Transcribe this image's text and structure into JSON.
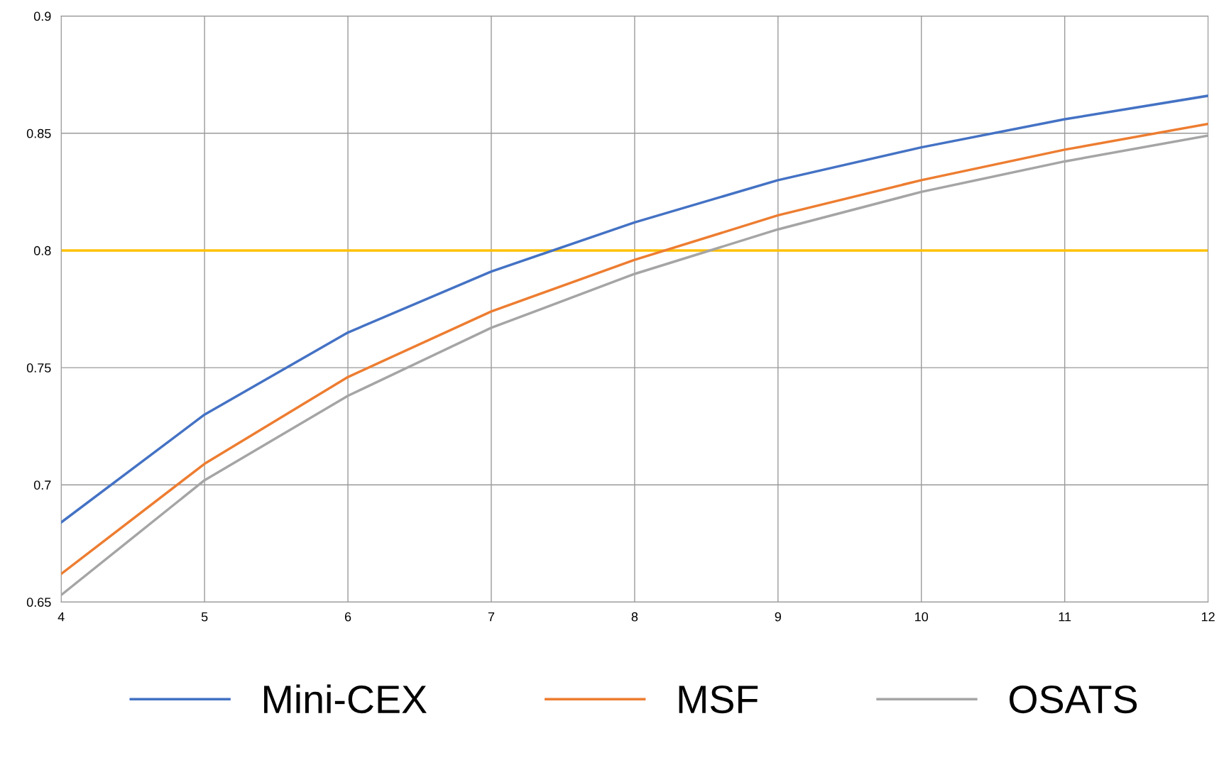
{
  "chart_data": {
    "type": "line",
    "x": [
      4,
      5,
      6,
      7,
      8,
      9,
      10,
      11,
      12
    ],
    "series": [
      {
        "name": "Mini-CEX",
        "color": "#4472c4",
        "values": [
          0.684,
          0.73,
          0.765,
          0.791,
          0.812,
          0.83,
          0.844,
          0.856,
          0.866
        ]
      },
      {
        "name": "MSF",
        "color": "#ed7d31",
        "values": [
          0.662,
          0.709,
          0.746,
          0.774,
          0.796,
          0.815,
          0.83,
          0.843,
          0.854
        ]
      },
      {
        "name": "OSATS",
        "color": "#a5a5a5",
        "values": [
          0.653,
          0.702,
          0.738,
          0.767,
          0.79,
          0.809,
          0.825,
          0.838,
          0.849
        ]
      }
    ],
    "ref_lines": [
      {
        "axis": "y",
        "value": 0.8,
        "color": "#ffc000"
      }
    ],
    "xlim": [
      4,
      12
    ],
    "xticks": [
      4,
      5,
      6,
      7,
      8,
      9,
      10,
      11,
      12
    ],
    "ylim": [
      0.65,
      0.9
    ],
    "yticks": [
      0.65,
      0.7,
      0.75,
      0.8,
      0.85,
      0.9
    ],
    "grid": true,
    "legend": "bottom",
    "marker": "none",
    "line_style": "solid"
  }
}
